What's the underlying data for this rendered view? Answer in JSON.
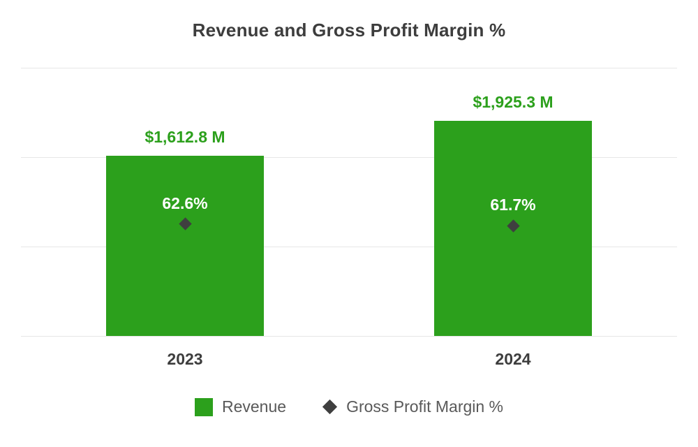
{
  "chart_data": {
    "type": "bar",
    "title": "Revenue and Gross Profit Margin %",
    "categories": [
      "2023",
      "2024"
    ],
    "series": [
      {
        "name": "Revenue",
        "type": "bar",
        "unit": "$M",
        "values": [
          1612.8,
          1925.3
        ],
        "labels": [
          "$1,612.8 M",
          "$1,925.3 M"
        ]
      },
      {
        "name": "Gross Profit Margin %",
        "type": "scatter",
        "marker": "diamond",
        "unit": "%",
        "values": [
          62.6,
          61.7
        ],
        "labels": [
          "62.6%",
          "61.7%"
        ]
      }
    ],
    "ylim": [
      0,
      2400
    ],
    "y2lim": [
      0,
      150
    ],
    "grid_values": [
      0,
      800,
      1600,
      2400
    ],
    "grid": "horizontal",
    "legend_position": "bottom"
  },
  "colors": {
    "revenue_green": "#2ca01c",
    "marker_dark": "#3f3f3f",
    "gridline": "#e6e6e6",
    "title_text": "#3d3d3d",
    "axis_text": "#3d3d3d",
    "legend_text": "#595959",
    "pct_text": "#ffffff",
    "background": "#ffffff"
  }
}
